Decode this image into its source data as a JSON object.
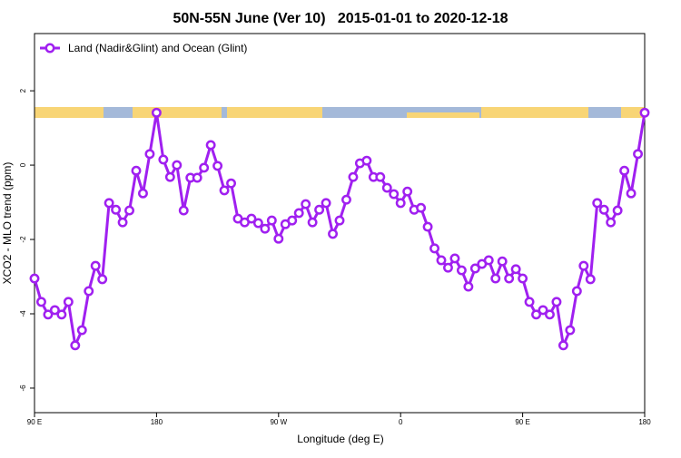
{
  "chart_data": {
    "type": "line",
    "title": "50N-55N June (Ver 10)   2015-01-01 to 2020-12-18",
    "x_label": "Longitude (deg E)",
    "y_label": "XCO2 - MLO trend (ppm)",
    "legend": "top-left",
    "xlim": [
      90,
      540
    ],
    "ylim": [
      -6.66,
      3.54
    ],
    "xticks": [
      {
        "value": 90,
        "label": "90 E"
      },
      {
        "value": 180,
        "label": "180"
      },
      {
        "value": 270,
        "label": "90 W"
      },
      {
        "value": 360,
        "label": "0"
      },
      {
        "value": 450,
        "label": "90 E"
      },
      {
        "value": 540,
        "label": "180"
      }
    ],
    "yticks": [
      2,
      0,
      -2,
      -4,
      -6
    ],
    "x": [
      90,
      95,
      100,
      105,
      110,
      115,
      120,
      125,
      130,
      135,
      140,
      145,
      150,
      155,
      160,
      165,
      170,
      175,
      180,
      185,
      190,
      195,
      200,
      205,
      210,
      215,
      220,
      225,
      230,
      235,
      240,
      245,
      250,
      255,
      260,
      265,
      270,
      275,
      280,
      285,
      290,
      295,
      300,
      305,
      310,
      315,
      320,
      325,
      330,
      335,
      340,
      345,
      350,
      355,
      360,
      365,
      370,
      375,
      380,
      385,
      390,
      395,
      400,
      405,
      410,
      415,
      420,
      425,
      430,
      435,
      440,
      445,
      450,
      455,
      460,
      465,
      470,
      475,
      480,
      485,
      490,
      495,
      500,
      505,
      510,
      515,
      520,
      525,
      530,
      535,
      540
    ],
    "series": [
      {
        "name": "Land (Nadir&Glint) and Ocean (Glint)",
        "color": "#a020f0",
        "values": [
          -3.05,
          -3.68,
          -4.02,
          -3.9,
          -4.02,
          -3.68,
          -4.85,
          -4.44,
          -3.39,
          -2.71,
          -3.07,
          -1.02,
          -1.2,
          -1.54,
          -1.22,
          -0.15,
          -0.76,
          0.3,
          1.41,
          0.15,
          -0.32,
          0.0,
          -1.22,
          -0.34,
          -0.34,
          -0.07,
          0.54,
          -0.02,
          -0.68,
          -0.49,
          -1.44,
          -1.54,
          -1.44,
          -1.56,
          -1.71,
          -1.49,
          -1.98,
          -1.59,
          -1.49,
          -1.29,
          -1.05,
          -1.54,
          -1.2,
          -1.02,
          -1.85,
          -1.49,
          -0.93,
          -0.32,
          0.05,
          0.12,
          -0.32,
          -0.32,
          -0.61,
          -0.78,
          -1.02,
          -0.71,
          -1.2,
          -1.15,
          -1.66,
          -2.24,
          -2.56,
          -2.76,
          -2.51,
          -2.83,
          -3.27,
          -2.78,
          -2.66,
          -2.56,
          -3.05,
          -2.59,
          -3.05,
          -2.8,
          -3.05,
          -3.68,
          -4.02,
          -3.9,
          -4.02,
          -3.68,
          -4.85,
          -4.44,
          -3.39,
          -2.71,
          -3.07,
          -1.02,
          -1.2,
          -1.54,
          -1.22,
          -0.15,
          -0.76,
          0.3,
          1.41
        ]
      }
    ]
  }
}
